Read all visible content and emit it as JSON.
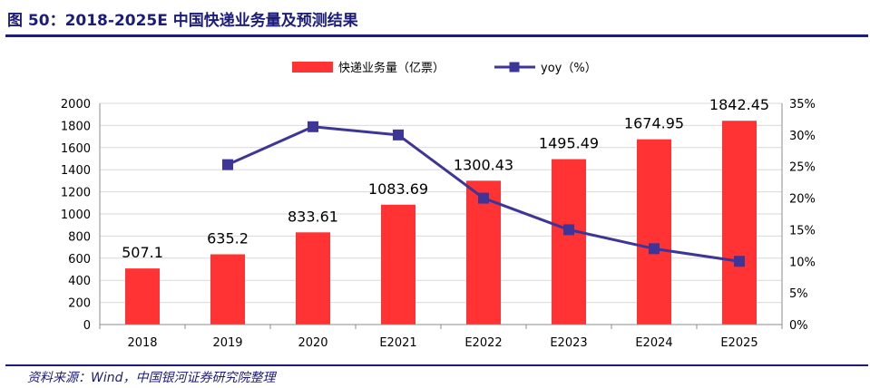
{
  "figure": {
    "title": "图 50：2018-2025E 中国快递业务量及预测结果",
    "source": "资料来源：Wind，中国银河证券研究院整理"
  },
  "colors": {
    "bar": "#ff3333",
    "line": "#3d3597",
    "marker": "#3d3597",
    "rule": "#1c1c7a",
    "grid": "#d9d9d9"
  },
  "chart_data": {
    "type": "bar",
    "title": "",
    "categories": [
      "2018",
      "2019",
      "2020",
      "E2021",
      "E2022",
      "E2023",
      "E2024",
      "E2025"
    ],
    "series": [
      {
        "name": "快递业务量（亿票）",
        "type": "bar",
        "axis": "left",
        "values": [
          507.1,
          635.2,
          833.61,
          1083.69,
          1300.43,
          1495.49,
          1674.95,
          1842.45
        ],
        "labels": [
          "507.1",
          "635.2",
          "833.61",
          "1083.69",
          "1300.43",
          "1495.49",
          "1674.95",
          "1842.45"
        ]
      },
      {
        "name": "yoy（%）",
        "type": "line",
        "axis": "right",
        "values": [
          null,
          25.3,
          31.3,
          30.0,
          20.0,
          15.0,
          12.0,
          10.0
        ]
      }
    ],
    "y_left": {
      "min": 0,
      "max": 2000,
      "ticks": [
        "0",
        "200",
        "400",
        "600",
        "800",
        "1000",
        "1200",
        "1400",
        "1600",
        "1800",
        "2000"
      ]
    },
    "y_right": {
      "min": 0,
      "max": 35,
      "ticks": [
        "0%",
        "5%",
        "10%",
        "15%",
        "20%",
        "25%",
        "30%",
        "35%"
      ]
    },
    "legend_position": "top-center",
    "grid": true
  }
}
